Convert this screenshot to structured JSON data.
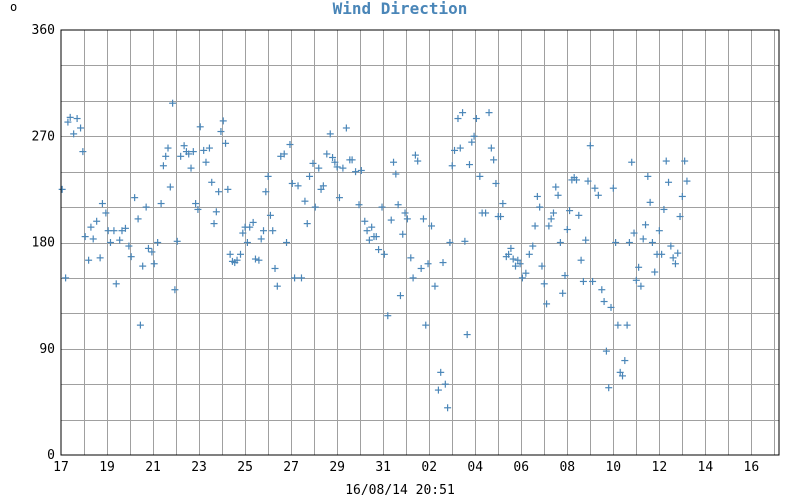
{
  "chart_data": {
    "type": "scatter",
    "title": "Wind Direction",
    "unit_label": "o",
    "timestamp": "16/08/14 20:51",
    "ylim": [
      0,
      360
    ],
    "yticks": [
      0,
      90,
      180,
      270,
      360
    ],
    "x_start_day_offset": 0,
    "x_span_days": 31.2,
    "xticks": [
      "17",
      "19",
      "21",
      "23",
      "25",
      "27",
      "29",
      "31",
      "02",
      "04",
      "06",
      "08",
      "10",
      "12",
      "14",
      "16"
    ],
    "marker_color": "#4a86b8",
    "grid": true,
    "points": [
      [
        0.05,
        225
      ],
      [
        0.2,
        150
      ],
      [
        0.3,
        282
      ],
      [
        0.4,
        286
      ],
      [
        0.55,
        272
      ],
      [
        0.7,
        285
      ],
      [
        0.85,
        277
      ],
      [
        0.95,
        257
      ],
      [
        1.05,
        185
      ],
      [
        1.2,
        165
      ],
      [
        1.3,
        193
      ],
      [
        1.4,
        183
      ],
      [
        1.55,
        198
      ],
      [
        1.7,
        167
      ],
      [
        1.8,
        213
      ],
      [
        1.95,
        205
      ],
      [
        2.05,
        190
      ],
      [
        2.15,
        180
      ],
      [
        2.3,
        190
      ],
      [
        2.4,
        145
      ],
      [
        2.55,
        182
      ],
      [
        2.65,
        190
      ],
      [
        2.8,
        192
      ],
      [
        2.95,
        177
      ],
      [
        3.05,
        168
      ],
      [
        3.2,
        218
      ],
      [
        3.35,
        200
      ],
      [
        3.45,
        110
      ],
      [
        3.55,
        160
      ],
      [
        3.7,
        210
      ],
      [
        3.8,
        175
      ],
      [
        3.95,
        172
      ],
      [
        4.05,
        162
      ],
      [
        4.2,
        180
      ],
      [
        4.35,
        213
      ],
      [
        4.45,
        245
      ],
      [
        4.55,
        253
      ],
      [
        4.65,
        260
      ],
      [
        4.75,
        227
      ],
      [
        4.85,
        298
      ],
      [
        4.95,
        140
      ],
      [
        5.05,
        181
      ],
      [
        5.2,
        253
      ],
      [
        5.35,
        262
      ],
      [
        5.45,
        257
      ],
      [
        5.55,
        255
      ],
      [
        5.65,
        243
      ],
      [
        5.75,
        257
      ],
      [
        5.85,
        213
      ],
      [
        5.95,
        208
      ],
      [
        6.05,
        278
      ],
      [
        6.2,
        258
      ],
      [
        6.3,
        248
      ],
      [
        6.45,
        260
      ],
      [
        6.55,
        231
      ],
      [
        6.65,
        196
      ],
      [
        6.75,
        206
      ],
      [
        6.85,
        223
      ],
      [
        6.95,
        274
      ],
      [
        7.05,
        283
      ],
      [
        7.15,
        264
      ],
      [
        7.25,
        225
      ],
      [
        7.35,
        170
      ],
      [
        7.45,
        164
      ],
      [
        7.55,
        163
      ],
      [
        7.65,
        165
      ],
      [
        7.8,
        170
      ],
      [
        7.9,
        188
      ],
      [
        8.0,
        193
      ],
      [
        8.1,
        180
      ],
      [
        8.2,
        193
      ],
      [
        8.35,
        197
      ],
      [
        8.45,
        166
      ],
      [
        8.6,
        165
      ],
      [
        8.7,
        183
      ],
      [
        8.8,
        190
      ],
      [
        8.9,
        223
      ],
      [
        9.0,
        236
      ],
      [
        9.1,
        203
      ],
      [
        9.2,
        190
      ],
      [
        9.3,
        158
      ],
      [
        9.4,
        143
      ],
      [
        9.55,
        253
      ],
      [
        9.7,
        255
      ],
      [
        9.8,
        180
      ],
      [
        9.95,
        263
      ],
      [
        10.05,
        230
      ],
      [
        10.15,
        150
      ],
      [
        10.3,
        228
      ],
      [
        10.45,
        150
      ],
      [
        10.6,
        215
      ],
      [
        10.7,
        196
      ],
      [
        10.8,
        236
      ],
      [
        10.95,
        247
      ],
      [
        11.05,
        210
      ],
      [
        11.2,
        243
      ],
      [
        11.3,
        225
      ],
      [
        11.4,
        228
      ],
      [
        11.55,
        255
      ],
      [
        11.7,
        272
      ],
      [
        11.8,
        252
      ],
      [
        11.9,
        248
      ],
      [
        12.0,
        244
      ],
      [
        12.1,
        218
      ],
      [
        12.25,
        243
      ],
      [
        12.4,
        277
      ],
      [
        12.55,
        250
      ],
      [
        12.65,
        250
      ],
      [
        12.8,
        240
      ],
      [
        12.95,
        212
      ],
      [
        13.05,
        241
      ],
      [
        13.2,
        198
      ],
      [
        13.3,
        190
      ],
      [
        13.4,
        182
      ],
      [
        13.5,
        193
      ],
      [
        13.6,
        185
      ],
      [
        13.7,
        185
      ],
      [
        13.8,
        174
      ],
      [
        13.95,
        210
      ],
      [
        14.05,
        170
      ],
      [
        14.2,
        118
      ],
      [
        14.35,
        199
      ],
      [
        14.45,
        248
      ],
      [
        14.55,
        238
      ],
      [
        14.65,
        212
      ],
      [
        14.75,
        135
      ],
      [
        14.85,
        187
      ],
      [
        14.95,
        205
      ],
      [
        15.05,
        200
      ],
      [
        15.2,
        167
      ],
      [
        15.3,
        150
      ],
      [
        15.4,
        254
      ],
      [
        15.5,
        249
      ],
      [
        15.65,
        158
      ],
      [
        15.75,
        200
      ],
      [
        15.85,
        110
      ],
      [
        15.95,
        162
      ],
      [
        16.1,
        194
      ],
      [
        16.25,
        143
      ],
      [
        16.4,
        55
      ],
      [
        16.5,
        70
      ],
      [
        16.6,
        163
      ],
      [
        16.7,
        60
      ],
      [
        16.8,
        40
      ],
      [
        16.9,
        180
      ],
      [
        17.0,
        245
      ],
      [
        17.1,
        258
      ],
      [
        17.25,
        285
      ],
      [
        17.35,
        260
      ],
      [
        17.45,
        290
      ],
      [
        17.55,
        181
      ],
      [
        17.65,
        102
      ],
      [
        17.75,
        246
      ],
      [
        17.85,
        265
      ],
      [
        17.95,
        270
      ],
      [
        18.05,
        285
      ],
      [
        18.2,
        236
      ],
      [
        18.3,
        205
      ],
      [
        18.45,
        205
      ],
      [
        18.6,
        290
      ],
      [
        18.7,
        260
      ],
      [
        18.8,
        250
      ],
      [
        18.9,
        230
      ],
      [
        19.0,
        202
      ],
      [
        19.1,
        202
      ],
      [
        19.2,
        213
      ],
      [
        19.35,
        168
      ],
      [
        19.45,
        170
      ],
      [
        19.55,
        175
      ],
      [
        19.65,
        166
      ],
      [
        19.75,
        160
      ],
      [
        19.85,
        165
      ],
      [
        19.95,
        162
      ],
      [
        20.05,
        150
      ],
      [
        20.2,
        154
      ],
      [
        20.35,
        170
      ],
      [
        20.5,
        177
      ],
      [
        20.6,
        194
      ],
      [
        20.7,
        219
      ],
      [
        20.8,
        210
      ],
      [
        20.9,
        160
      ],
      [
        21.0,
        145
      ],
      [
        21.1,
        128
      ],
      [
        21.2,
        194
      ],
      [
        21.3,
        200
      ],
      [
        21.4,
        205
      ],
      [
        21.5,
        227
      ],
      [
        21.6,
        220
      ],
      [
        21.7,
        180
      ],
      [
        21.8,
        137
      ],
      [
        21.9,
        152
      ],
      [
        22.0,
        191
      ],
      [
        22.1,
        207
      ],
      [
        22.2,
        233
      ],
      [
        22.3,
        235
      ],
      [
        22.4,
        233
      ],
      [
        22.5,
        203
      ],
      [
        22.6,
        165
      ],
      [
        22.7,
        147
      ],
      [
        22.8,
        182
      ],
      [
        22.9,
        232
      ],
      [
        23.0,
        262
      ],
      [
        23.1,
        147
      ],
      [
        23.2,
        226
      ],
      [
        23.35,
        220
      ],
      [
        23.5,
        140
      ],
      [
        23.6,
        130
      ],
      [
        23.7,
        88
      ],
      [
        23.8,
        57
      ],
      [
        23.9,
        125
      ],
      [
        24.0,
        226
      ],
      [
        24.1,
        180
      ],
      [
        24.2,
        110
      ],
      [
        24.3,
        70
      ],
      [
        24.4,
        67
      ],
      [
        24.5,
        80
      ],
      [
        24.6,
        110
      ],
      [
        24.7,
        180
      ],
      [
        24.8,
        248
      ],
      [
        24.9,
        188
      ],
      [
        25.0,
        148
      ],
      [
        25.1,
        159
      ],
      [
        25.2,
        143
      ],
      [
        25.3,
        183
      ],
      [
        25.4,
        195
      ],
      [
        25.5,
        236
      ],
      [
        25.6,
        214
      ],
      [
        25.7,
        180
      ],
      [
        25.8,
        155
      ],
      [
        25.9,
        170
      ],
      [
        26.0,
        190
      ],
      [
        26.1,
        170
      ],
      [
        26.2,
        208
      ],
      [
        26.3,
        249
      ],
      [
        26.4,
        231
      ],
      [
        26.5,
        177
      ],
      [
        26.6,
        167
      ],
      [
        26.7,
        162
      ],
      [
        26.8,
        171
      ],
      [
        26.9,
        202
      ],
      [
        27.0,
        219
      ],
      [
        27.1,
        249
      ],
      [
        27.2,
        232
      ]
    ]
  }
}
